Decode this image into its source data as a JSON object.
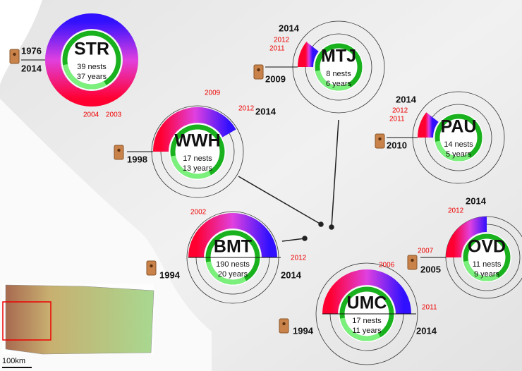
{
  "sites": [
    {
      "code": "STR",
      "nests": "39 nests",
      "years": "37 years",
      "years_black": [
        "1976",
        "2014"
      ],
      "years_red": [
        "2004",
        "2003"
      ]
    },
    {
      "code": "MTJ",
      "nests": "8 nests",
      "years": "6 years",
      "years_black": [
        "2014",
        "2009"
      ],
      "years_red": [
        "2012",
        "2011"
      ]
    },
    {
      "code": "WWH",
      "nests": "17 nests",
      "years": "13 years",
      "years_black": [
        "2014",
        "1998"
      ],
      "years_red": [
        "2009",
        "2012"
      ]
    },
    {
      "code": "PAU",
      "nests": "14 nests",
      "years": "5 years",
      "years_black": [
        "2014",
        "2010"
      ],
      "years_red": [
        "2012",
        "2011"
      ]
    },
    {
      "code": "BMT",
      "nests": "190 nests",
      "years": "20 years",
      "years_black": [
        "1994",
        "2014"
      ],
      "years_red": [
        "2002",
        "2012"
      ]
    },
    {
      "code": "OVD",
      "nests": "11 nests",
      "years": "9 years",
      "years_black": [
        "2014",
        "2005"
      ],
      "years_red": [
        "2012",
        "2007"
      ]
    },
    {
      "code": "UMC",
      "nests": "17 nests",
      "years": "11 years",
      "years_black": [
        "1994",
        "2014"
      ],
      "years_red": [
        "2006",
        "2011"
      ]
    }
  ],
  "scale_label": "100km"
}
